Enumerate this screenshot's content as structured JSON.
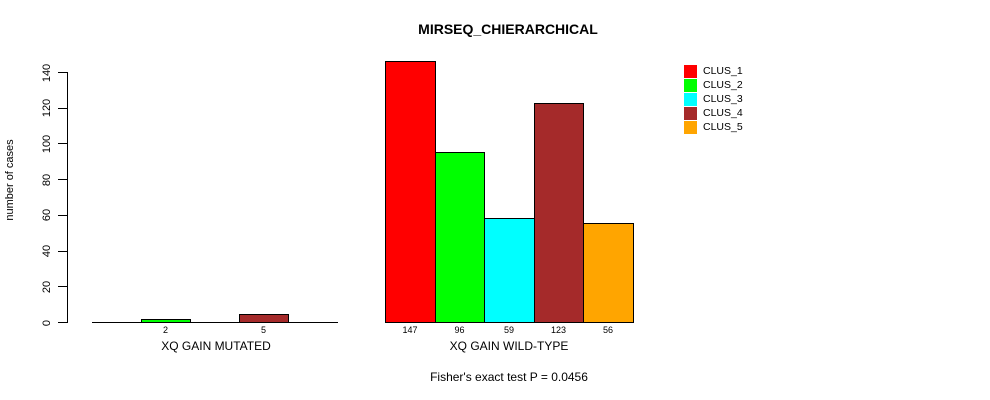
{
  "chart_data": {
    "type": "bar",
    "title": "MIRSEQ_CHIERARCHICAL",
    "ylabel": "number of cases",
    "xlabel": "",
    "footnote": "Fisher's exact test P = 0.0456",
    "ylim": [
      0,
      140
    ],
    "yticks": [
      0,
      20,
      40,
      60,
      80,
      100,
      120,
      140
    ],
    "grid": false,
    "legend_position": "top-right",
    "series": [
      {
        "name": "CLUS_1",
        "color": "#FF0000"
      },
      {
        "name": "CLUS_2",
        "color": "#00FF00"
      },
      {
        "name": "CLUS_3",
        "color": "#00FFFF"
      },
      {
        "name": "CLUS_4",
        "color": "#A52A2A"
      },
      {
        "name": "CLUS_5",
        "color": "#FFA500"
      }
    ],
    "groups": [
      {
        "label": "XQ GAIN MUTATED",
        "values": [
          0,
          2,
          0,
          5,
          0
        ]
      },
      {
        "label": "XQ GAIN WILD-TYPE",
        "values": [
          147,
          96,
          59,
          123,
          56
        ]
      }
    ]
  }
}
